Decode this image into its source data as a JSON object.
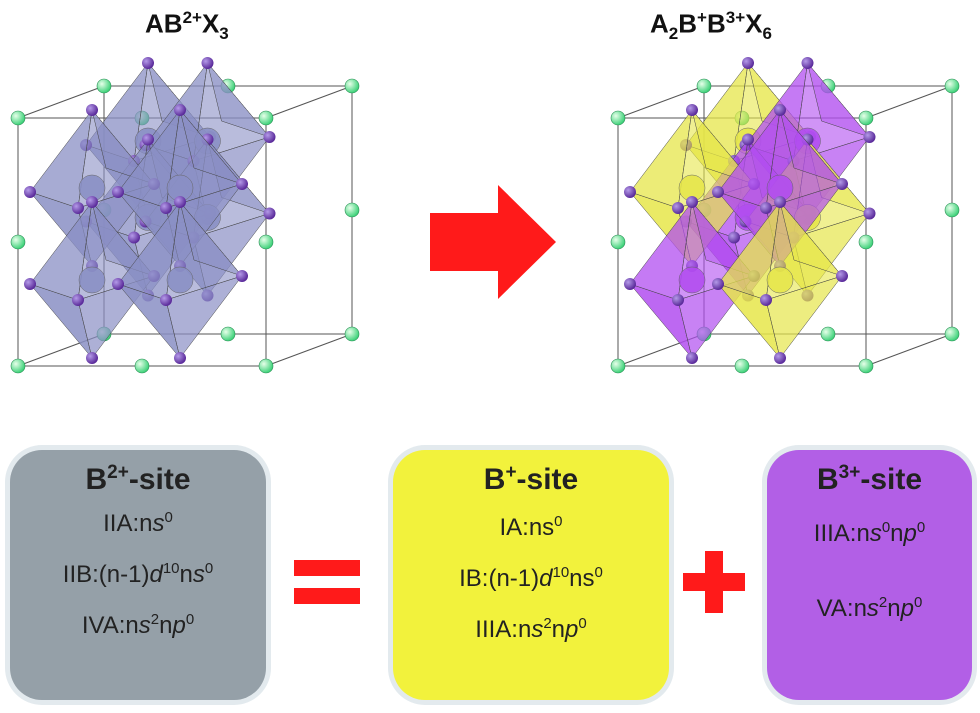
{
  "titles": {
    "left": {
      "base": "AB",
      "sup": "2+",
      "x": "X",
      "sub": "3"
    },
    "right": {
      "a": "A",
      "a_sub": "2",
      "b1": "B",
      "b1_sup": "+",
      "b2": "B",
      "b2_sup": "3+",
      "x": "X",
      "x_sub": "6"
    }
  },
  "boxes": {
    "b2": {
      "head_base": "B",
      "head_sup": "2+",
      "head_rest": "-site",
      "lines": [
        {
          "p1": "IIA:n",
          "i1": "s",
          "s1": "0"
        },
        {
          "p1": "IIB:(n-1)",
          "i1": "d",
          "s1": "10",
          "p2": "n",
          "i2": "s",
          "s2": "0"
        },
        {
          "p1": "IVA:n",
          "i1": "s",
          "s1": "2",
          "p2": "n",
          "i2": "p",
          "s2": "0"
        }
      ]
    },
    "bp": {
      "head_base": "B",
      "head_sup": "+",
      "head_rest": "-site",
      "lines": [
        {
          "p1": "IA:ns",
          "s1": "0"
        },
        {
          "p1": "IB:(n-1)",
          "i1": "d",
          "s1": "10",
          "p2": "ns",
          "s2": "0"
        },
        {
          "p1": "IIIA:n",
          "i1": "s",
          "s1": "2",
          "p2": "n",
          "i2": "p",
          "s2": "0"
        }
      ]
    },
    "b3": {
      "head_base": "B",
      "head_sup": "3+",
      "head_rest": "-site",
      "lines": [
        {
          "p1": "IIIA:n",
          "i1": "s",
          "s1": "0",
          "p2": "n",
          "i2": "p",
          "s2": "0"
        },
        {
          "p1": "VA:n",
          "i1": "s",
          "s1": "2",
          "p2": "n",
          "i2": "p",
          "s2": "0"
        }
      ]
    }
  },
  "colors": {
    "octa_gray": "#8a8fc4",
    "octa_purple": "#b14df0",
    "octa_yellow": "#e6e64a",
    "atom_x": "#5a2a9a",
    "atom_a": "#7ef0a2",
    "arrow": "#ff1a1a",
    "box_b2": "#95a0a8",
    "box_bp": "#f2f23c",
    "box_b3": "#b25fe6"
  }
}
